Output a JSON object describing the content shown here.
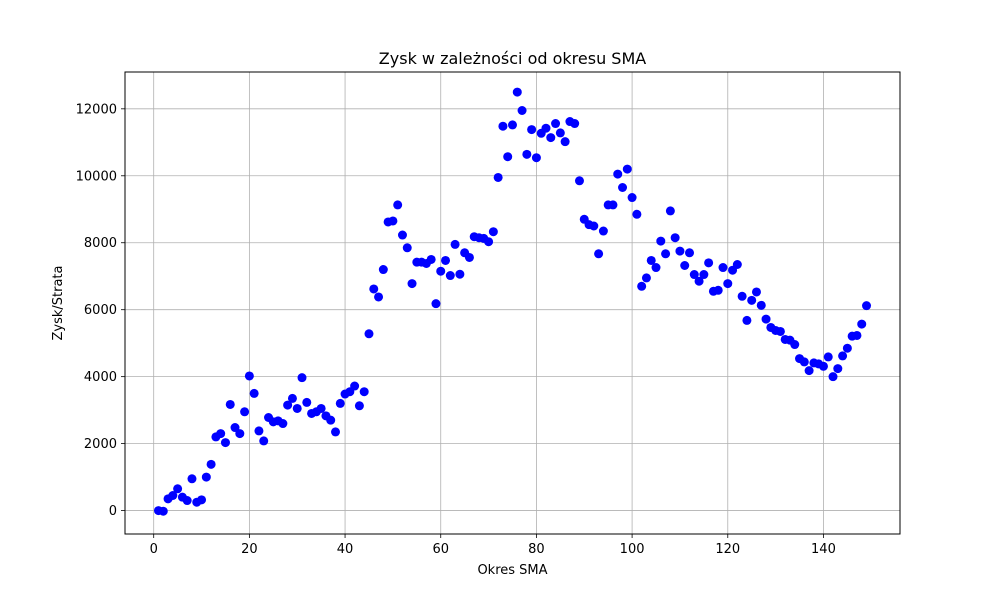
{
  "chart_data": {
    "type": "scatter",
    "title": "Zysk w zależności od okresu SMA",
    "xlabel": "Okres SMA",
    "ylabel": "Zysk/Strata",
    "xlim": [
      -6,
      156
    ],
    "ylim": [
      -700,
      13100
    ],
    "xticks": [
      0,
      20,
      40,
      60,
      80,
      100,
      120,
      140
    ],
    "yticks": [
      0,
      2000,
      4000,
      6000,
      8000,
      10000,
      12000
    ],
    "grid": true,
    "marker_color": "#0000ff",
    "x": [
      1,
      2,
      3,
      4,
      5,
      6,
      7,
      8,
      9,
      10,
      11,
      12,
      13,
      14,
      15,
      16,
      17,
      18,
      19,
      20,
      21,
      22,
      23,
      24,
      25,
      26,
      27,
      28,
      29,
      30,
      31,
      32,
      33,
      34,
      35,
      36,
      37,
      38,
      39,
      40,
      41,
      42,
      43,
      44,
      45,
      46,
      47,
      48,
      49,
      50,
      51,
      52,
      53,
      54,
      55,
      56,
      57,
      58,
      59,
      60,
      61,
      62,
      63,
      64,
      65,
      66,
      67,
      68,
      69,
      70,
      71,
      72,
      73,
      74,
      75,
      76,
      77,
      78,
      79,
      80,
      81,
      82,
      83,
      84,
      85,
      86,
      87,
      88,
      89,
      90,
      91,
      92,
      93,
      94,
      95,
      96,
      97,
      98,
      99,
      100,
      101,
      102,
      103,
      104,
      105,
      106,
      107,
      108,
      109,
      110,
      111,
      112,
      113,
      114,
      115,
      116,
      117,
      118,
      119,
      120,
      121,
      122,
      123,
      124,
      125,
      126,
      127,
      128,
      129,
      130,
      131,
      132,
      133,
      134,
      135,
      136,
      137,
      138,
      139,
      140,
      141,
      142,
      143,
      144,
      145,
      146,
      147,
      148,
      149
    ],
    "y": [
      0,
      -20,
      350,
      450,
      650,
      400,
      300,
      950,
      250,
      320,
      1000,
      1380,
      2200,
      2300,
      2030,
      3170,
      2480,
      2300,
      2950,
      4020,
      3500,
      2380,
      2080,
      2780,
      2650,
      2680,
      2600,
      3150,
      3350,
      3050,
      3970,
      3230,
      2900,
      2950,
      3050,
      2830,
      2700,
      2350,
      3200,
      3480,
      3550,
      3720,
      3130,
      3550,
      5280,
      6620,
      6380,
      7200,
      8620,
      8650,
      9130,
      8230,
      7850,
      6780,
      7420,
      7420,
      7380,
      7500,
      6180,
      7150,
      7470,
      7020,
      7950,
      7060,
      7700,
      7560,
      8180,
      8150,
      8130,
      8030,
      8330,
      9950,
      11480,
      10570,
      11520,
      12500,
      11950,
      10640,
      11380,
      10540,
      11270,
      11420,
      11140,
      11560,
      11280,
      11020,
      11620,
      11560,
      9850,
      8700,
      8540,
      8500,
      7670,
      8350,
      9130,
      9130,
      10050,
      9650,
      10200,
      9350,
      8850,
      6700,
      6950,
      7470,
      7260,
      8050,
      7670,
      8950,
      8150,
      7750,
      7320,
      7700,
      7050,
      6850,
      7050,
      7400,
      6550,
      6580,
      7260,
      6780,
      7180,
      7350,
      6400,
      5680,
      6280,
      6530,
      6130,
      5720,
      5470,
      5380,
      5350,
      5110,
      5090,
      4960,
      4540,
      4440,
      4180,
      4410,
      4380,
      4310,
      4590,
      4000,
      4240,
      4620,
      4850,
      5210,
      5230,
      5570,
      6120
    ]
  }
}
